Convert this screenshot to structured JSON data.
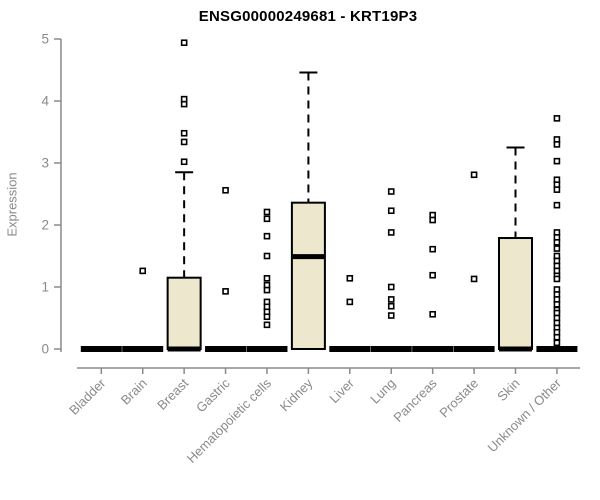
{
  "chart": {
    "title": "ENSG00000249681 - KRT19P3",
    "ylabel": "Expression"
  },
  "colors": {
    "title": "#000000",
    "axis": "#8a8a8a",
    "tick_label": "#8a8a8a",
    "box_fill": "#ede8cd",
    "box_stroke": "#000000",
    "median": "#000000",
    "outlier_stroke": "#000000",
    "outlier_fill": "#ffffff",
    "background": "#ffffff"
  },
  "chart_data": {
    "type": "boxplot",
    "title": "ENSG00000249681 - KRT19P3",
    "xlabel": "",
    "ylabel": "Expression",
    "ylim": [
      0,
      5
    ],
    "yticks": [
      0,
      1,
      2,
      3,
      4,
      5
    ],
    "grid": false,
    "legend": false,
    "categories": [
      "Bladder",
      "Brain",
      "Breast",
      "Gastric",
      "Hematopoietic cells",
      "Kidney",
      "Liver",
      "Lung",
      "Pancreas",
      "Prostate",
      "Skin",
      "Unknown / Other"
    ],
    "series": [
      {
        "name": "Bladder",
        "collapsed": true,
        "q1": 0,
        "median": 0,
        "q3": 0,
        "whisker_low": 0,
        "whisker_high": 0,
        "outliers": []
      },
      {
        "name": "Brain",
        "collapsed": true,
        "q1": 0,
        "median": 0,
        "q3": 0,
        "whisker_low": 0,
        "whisker_high": 0,
        "outliers": [
          1.26
        ]
      },
      {
        "name": "Breast",
        "collapsed": false,
        "q1": 0,
        "median": 0,
        "q3": 1.15,
        "whisker_low": 0,
        "whisker_high": 2.85,
        "outliers": [
          3.02,
          3.34,
          3.48,
          3.95,
          4.03,
          4.94
        ]
      },
      {
        "name": "Gastric",
        "collapsed": true,
        "q1": 0,
        "median": 0,
        "q3": 0,
        "whisker_low": 0,
        "whisker_high": 0,
        "outliers": [
          0.93,
          2.56
        ]
      },
      {
        "name": "Hematopoietic cells",
        "collapsed": true,
        "q1": 0,
        "median": 0,
        "q3": 0,
        "whisker_low": 0,
        "whisker_high": 0,
        "outliers": [
          2.21,
          2.1,
          1.82,
          1.5,
          1.14,
          1.03,
          0.95,
          0.76,
          0.68,
          0.6,
          0.52,
          0.39
        ]
      },
      {
        "name": "Kidney",
        "collapsed": false,
        "q1": 0,
        "median": 1.49,
        "q3": 2.36,
        "whisker_low": 0,
        "whisker_high": 4.46,
        "outliers": []
      },
      {
        "name": "Liver",
        "collapsed": true,
        "q1": 0,
        "median": 0,
        "q3": 0,
        "whisker_low": 0,
        "whisker_high": 0,
        "outliers": [
          1.14,
          0.76
        ]
      },
      {
        "name": "Lung",
        "collapsed": true,
        "q1": 0,
        "median": 0,
        "q3": 0,
        "whisker_low": 0,
        "whisker_high": 0,
        "outliers": [
          2.54,
          2.23,
          1.88,
          1.0,
          0.8,
          0.69,
          0.54
        ]
      },
      {
        "name": "Pancreas",
        "collapsed": true,
        "q1": 0,
        "median": 0,
        "q3": 0,
        "whisker_low": 0,
        "whisker_high": 0,
        "outliers": [
          2.16,
          2.08,
          1.61,
          1.19,
          0.56
        ]
      },
      {
        "name": "Prostate",
        "collapsed": true,
        "q1": 0,
        "median": 0,
        "q3": 0,
        "whisker_low": 0,
        "whisker_high": 0,
        "outliers": [
          2.81,
          1.13
        ]
      },
      {
        "name": "Skin",
        "collapsed": false,
        "q1": 0,
        "median": 0,
        "q3": 1.79,
        "whisker_low": 0,
        "whisker_high": 3.25,
        "outliers": []
      },
      {
        "name": "Unknown / Other",
        "collapsed": true,
        "q1": 0,
        "median": 0,
        "q3": 0,
        "whisker_low": 0,
        "whisker_high": 0,
        "outliers": [
          3.72,
          3.38,
          3.3,
          3.03,
          2.73,
          2.65,
          2.57,
          2.32,
          1.88,
          1.8,
          1.72,
          1.62,
          1.5,
          1.42,
          1.34,
          1.26,
          1.18,
          1.13,
          0.96,
          0.88,
          0.8,
          0.72,
          0.63,
          0.58,
          0.5,
          0.42,
          0.34,
          0.27,
          0.19,
          0.1
        ]
      }
    ]
  }
}
